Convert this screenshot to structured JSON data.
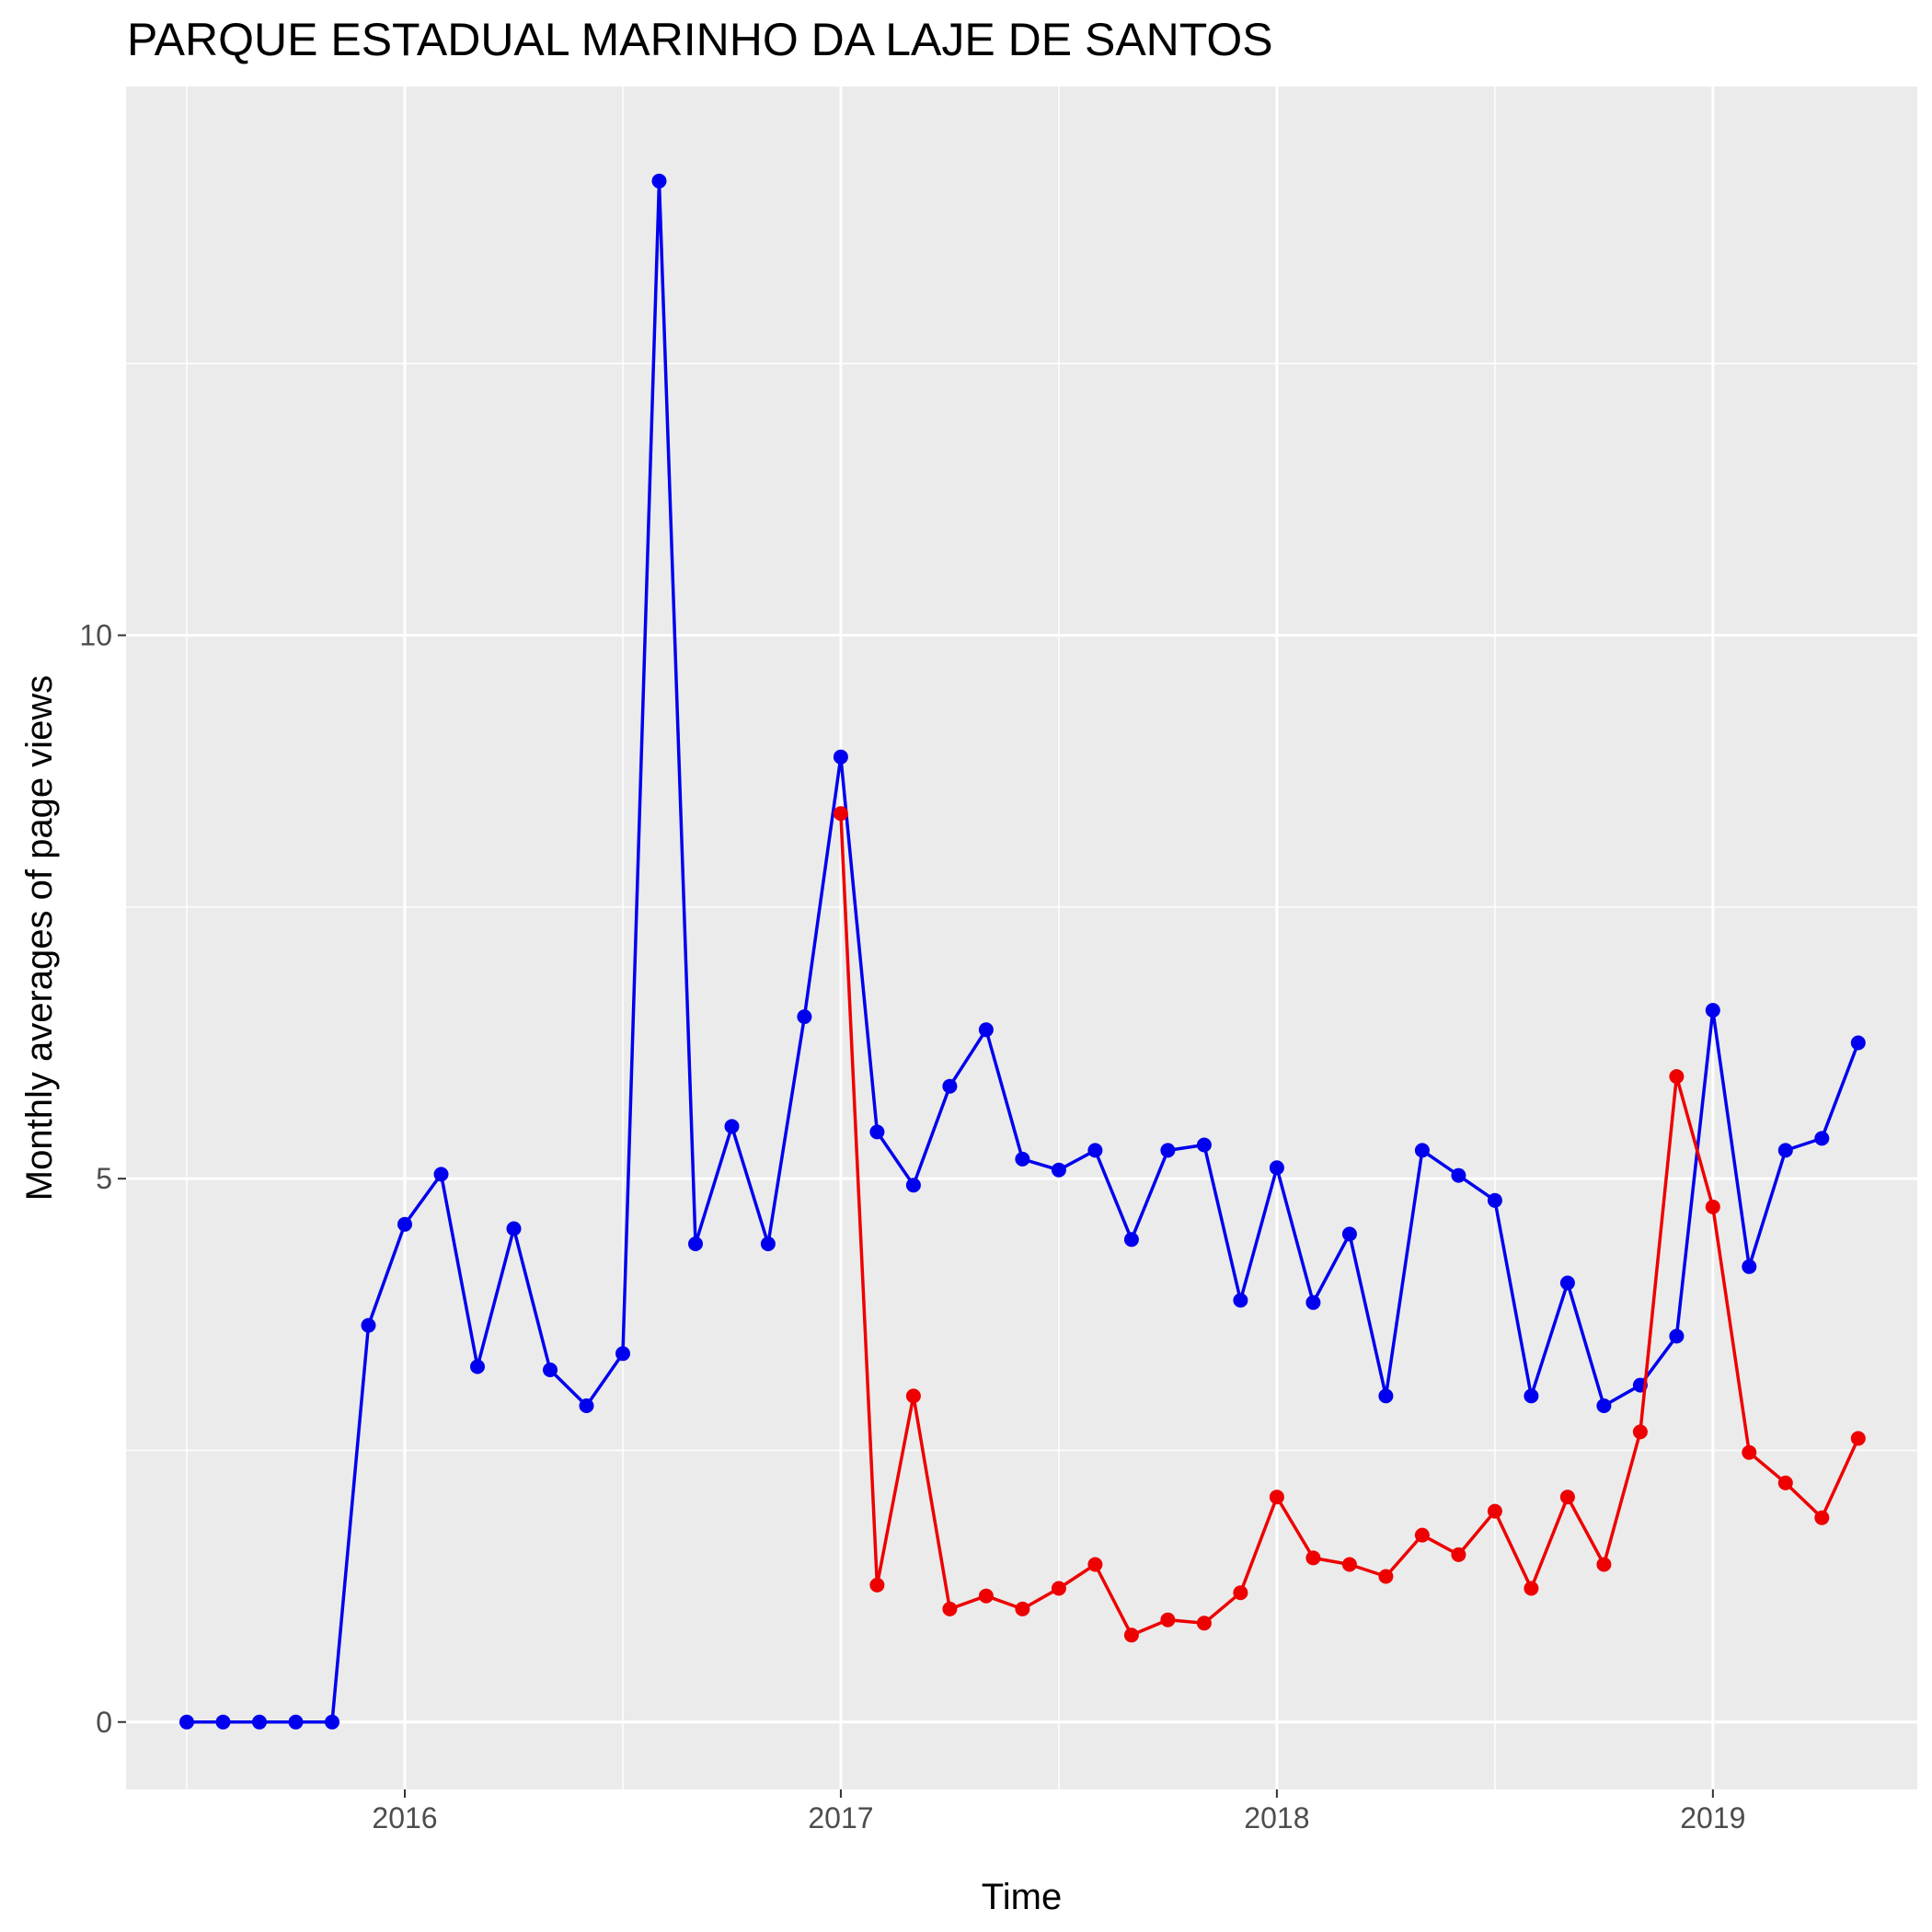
{
  "chart_data": {
    "type": "line",
    "title": "PARQUE ESTADUAL MARINHO DA LAJE DE SANTOS",
    "xlabel": "Time",
    "ylabel": "Monthly averages of page views",
    "x_ticks": [
      {
        "label": "2016",
        "value": "2016-01"
      },
      {
        "label": "2017",
        "value": "2017-01"
      },
      {
        "label": "2018",
        "value": "2018-01"
      },
      {
        "label": "2019",
        "value": "2019-01"
      }
    ],
    "xlim": [
      "2015-05-11",
      "2019-06-20"
    ],
    "y_ticks": [
      0,
      5,
      10
    ],
    "ylim": [
      -0.62,
      15.05
    ],
    "grid": true,
    "legend": "none",
    "series": [
      {
        "color": "#0000ee",
        "points": [
          [
            "2015-07",
            0.0
          ],
          [
            "2015-08",
            0.0
          ],
          [
            "2015-09",
            0.0
          ],
          [
            "2015-10",
            0.0
          ],
          [
            "2015-11",
            0.0
          ],
          [
            "2015-12",
            3.65
          ],
          [
            "2016-01",
            4.58
          ],
          [
            "2016-02",
            5.04
          ],
          [
            "2016-03",
            3.27
          ],
          [
            "2016-04",
            4.54
          ],
          [
            "2016-05",
            3.24
          ],
          [
            "2016-06",
            2.91
          ],
          [
            "2016-07",
            3.39
          ],
          [
            "2016-08",
            14.18
          ],
          [
            "2016-09",
            4.4
          ],
          [
            "2016-10",
            5.48
          ],
          [
            "2016-11",
            4.4
          ],
          [
            "2016-12",
            6.49
          ],
          [
            "2017-01",
            8.88
          ],
          [
            "2017-02",
            5.43
          ],
          [
            "2017-03",
            4.94
          ],
          [
            "2017-04",
            5.85
          ],
          [
            "2017-05",
            6.37
          ],
          [
            "2017-06",
            5.18
          ],
          [
            "2017-07",
            5.08
          ],
          [
            "2017-08",
            5.26
          ],
          [
            "2017-09",
            4.44
          ],
          [
            "2017-10",
            5.26
          ],
          [
            "2017-11",
            5.31
          ],
          [
            "2017-12",
            3.88
          ],
          [
            "2018-01",
            5.1
          ],
          [
            "2018-02",
            3.86
          ],
          [
            "2018-03",
            4.49
          ],
          [
            "2018-04",
            3.0
          ],
          [
            "2018-05",
            5.26
          ],
          [
            "2018-06",
            5.03
          ],
          [
            "2018-07",
            4.8
          ],
          [
            "2018-08",
            3.0
          ],
          [
            "2018-09",
            4.04
          ],
          [
            "2018-10",
            2.91
          ],
          [
            "2018-11",
            3.1
          ],
          [
            "2018-12",
            3.55
          ],
          [
            "2019-01",
            6.55
          ],
          [
            "2019-02",
            4.19
          ],
          [
            "2019-03",
            5.26
          ],
          [
            "2019-04",
            5.37
          ],
          [
            "2019-05",
            6.25
          ]
        ]
      },
      {
        "color": "#ee0000",
        "points": [
          [
            "2017-01",
            8.36
          ],
          [
            "2017-02",
            1.26
          ],
          [
            "2017-03",
            3.0
          ],
          [
            "2017-04",
            1.04
          ],
          [
            "2017-05",
            1.16
          ],
          [
            "2017-06",
            1.04
          ],
          [
            "2017-07",
            1.23
          ],
          [
            "2017-08",
            1.45
          ],
          [
            "2017-09",
            0.8
          ],
          [
            "2017-10",
            0.94
          ],
          [
            "2017-11",
            0.91
          ],
          [
            "2017-12",
            1.19
          ],
          [
            "2018-01",
            2.07
          ],
          [
            "2018-02",
            1.51
          ],
          [
            "2018-03",
            1.45
          ],
          [
            "2018-04",
            1.34
          ],
          [
            "2018-05",
            1.72
          ],
          [
            "2018-06",
            1.54
          ],
          [
            "2018-07",
            1.94
          ],
          [
            "2018-08",
            1.23
          ],
          [
            "2018-09",
            2.07
          ],
          [
            "2018-10",
            1.45
          ],
          [
            "2018-11",
            2.67
          ],
          [
            "2018-12",
            5.94
          ],
          [
            "2019-01",
            4.74
          ],
          [
            "2019-02",
            2.48
          ],
          [
            "2019-03",
            2.2
          ],
          [
            "2019-04",
            1.88
          ],
          [
            "2019-05",
            2.61
          ]
        ]
      }
    ]
  }
}
